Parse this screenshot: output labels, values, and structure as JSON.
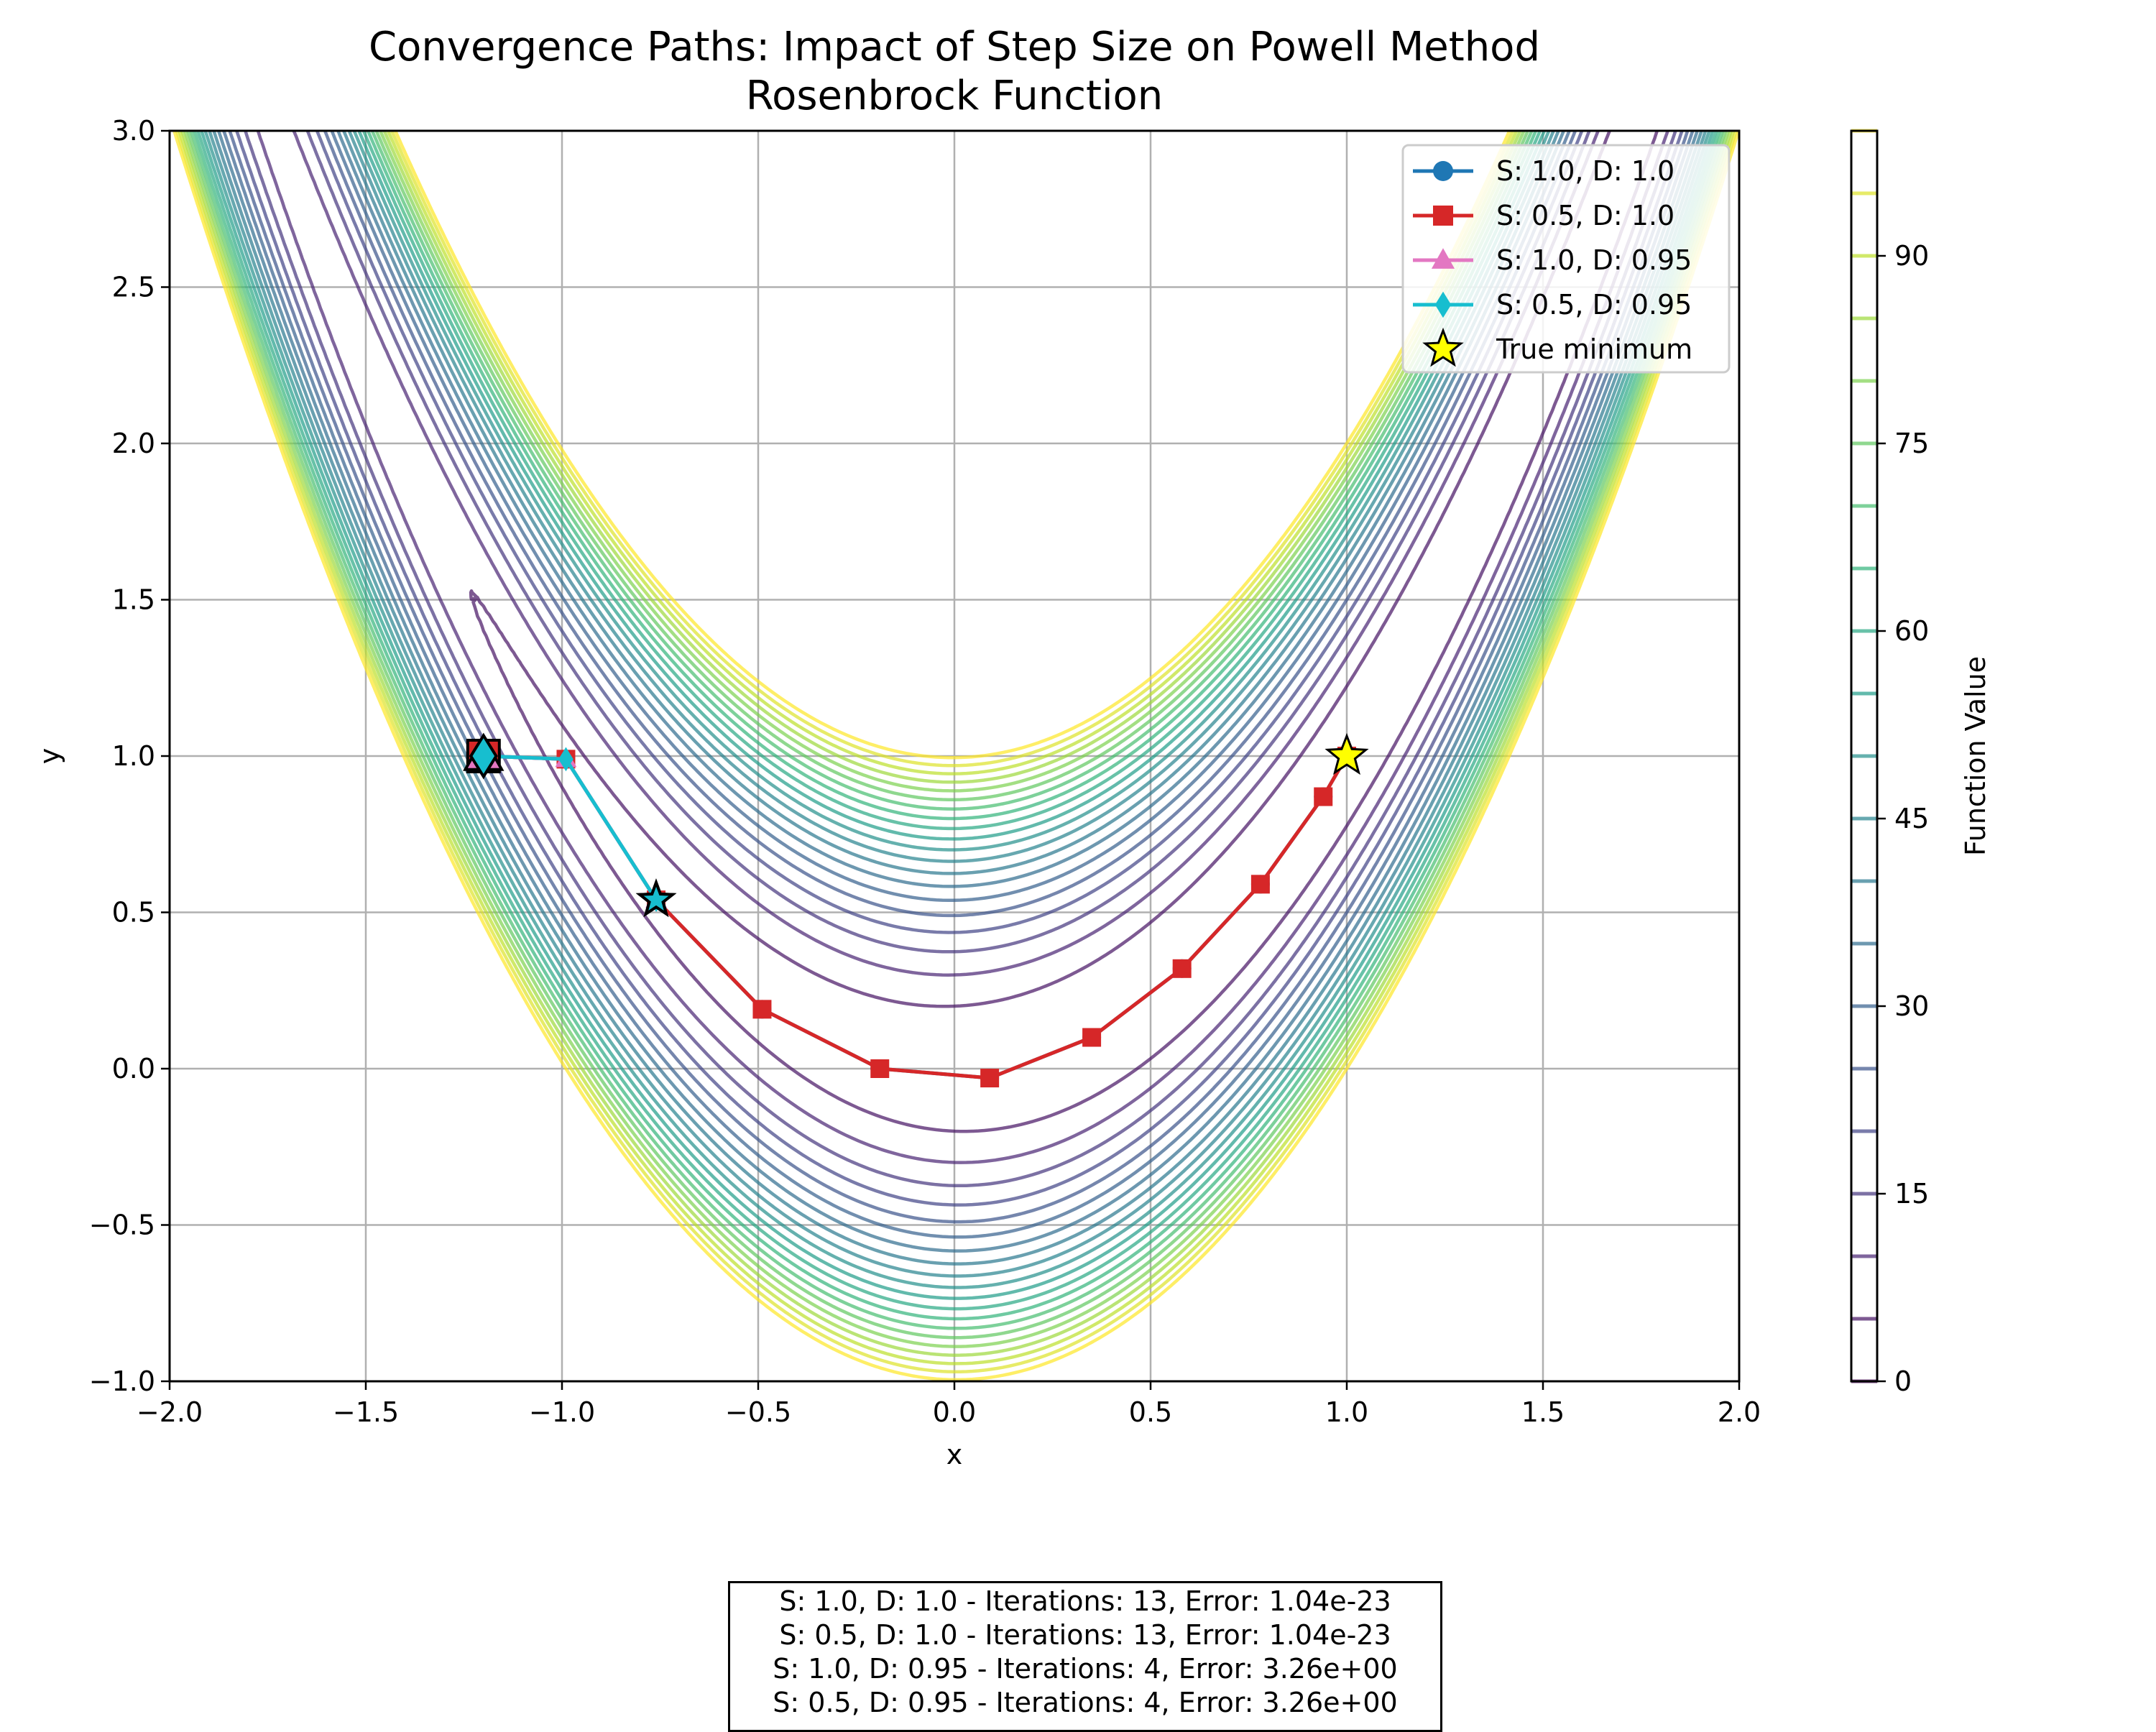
{
  "chart_data": {
    "type": "line",
    "title": "Convergence Paths: Impact of Step Size on Powell Method",
    "subtitle": "Rosenbrock Function",
    "xlabel": "x",
    "ylabel": "y",
    "xlim": [
      -2.0,
      2.0
    ],
    "ylim": [
      -1.0,
      3.0
    ],
    "x_ticks": [
      "−2.0",
      "−1.5",
      "−1.0",
      "−0.5",
      "0.0",
      "0.5",
      "1.0",
      "1.5",
      "2.0"
    ],
    "y_ticks": [
      "−1.0",
      "−0.5",
      "0.0",
      "0.5",
      "1.0",
      "1.5",
      "2.0",
      "2.5",
      "3.0"
    ],
    "grid": true,
    "legend_position": "top-right",
    "contour": {
      "function": "Rosenbrock",
      "levels": [
        0,
        5,
        10,
        15,
        20,
        25,
        30,
        35,
        40,
        45,
        50,
        55,
        60,
        65,
        70,
        75,
        80,
        85,
        90,
        95,
        100
      ],
      "colormap": "viridis",
      "alpha": 0.7
    },
    "colorbar": {
      "label": "Function Value",
      "range": [
        0,
        100
      ],
      "ticks": [
        "0",
        "15",
        "30",
        "45",
        "60",
        "75",
        "90"
      ],
      "tick_values": [
        0,
        15,
        30,
        45,
        60,
        75,
        90
      ]
    },
    "series": [
      {
        "name": "S: 1.0, D: 1.0",
        "color": "#1f77b4",
        "marker": "circle",
        "x": [
          -1.2,
          -0.99,
          -0.76,
          -0.49,
          -0.19,
          0.09,
          0.35,
          0.58,
          0.78,
          0.94,
          1.0
        ],
        "y": [
          1.0,
          0.99,
          0.54,
          0.19,
          0.0,
          -0.03,
          0.1,
          0.32,
          0.59,
          0.87,
          1.0
        ]
      },
      {
        "name": "S: 0.5, D: 1.0",
        "color": "#d62728",
        "marker": "square",
        "x": [
          -1.2,
          -0.99,
          -0.76,
          -0.49,
          -0.19,
          0.09,
          0.35,
          0.58,
          0.78,
          0.94,
          1.0
        ],
        "y": [
          1.0,
          0.99,
          0.54,
          0.19,
          0.0,
          -0.03,
          0.1,
          0.32,
          0.59,
          0.87,
          1.0
        ]
      },
      {
        "name": "S: 1.0, D: 0.95",
        "color": "#e377c2",
        "marker": "triangle",
        "x": [
          -1.2,
          -0.99,
          -0.76
        ],
        "y": [
          1.0,
          0.99,
          0.54
        ]
      },
      {
        "name": "S: 0.5, D: 0.95",
        "color": "#17becf",
        "marker": "diamond",
        "x": [
          -1.2,
          -0.99,
          -0.76
        ],
        "y": [
          1.0,
          0.99,
          0.54
        ]
      }
    ],
    "true_minimum": {
      "name": "True minimum",
      "x": 1.0,
      "y": 1.0,
      "color": "#ffff00"
    },
    "summary": [
      "S: 1.0, D: 1.0 - Iterations: 13, Error: 1.04e-23",
      "S: 0.5, D: 1.0 - Iterations: 13, Error: 1.04e-23",
      "S: 1.0, D: 0.95 - Iterations: 4, Error: 3.26e+00",
      "S: 0.5, D: 0.95 - Iterations: 4, Error: 3.26e+00"
    ]
  }
}
